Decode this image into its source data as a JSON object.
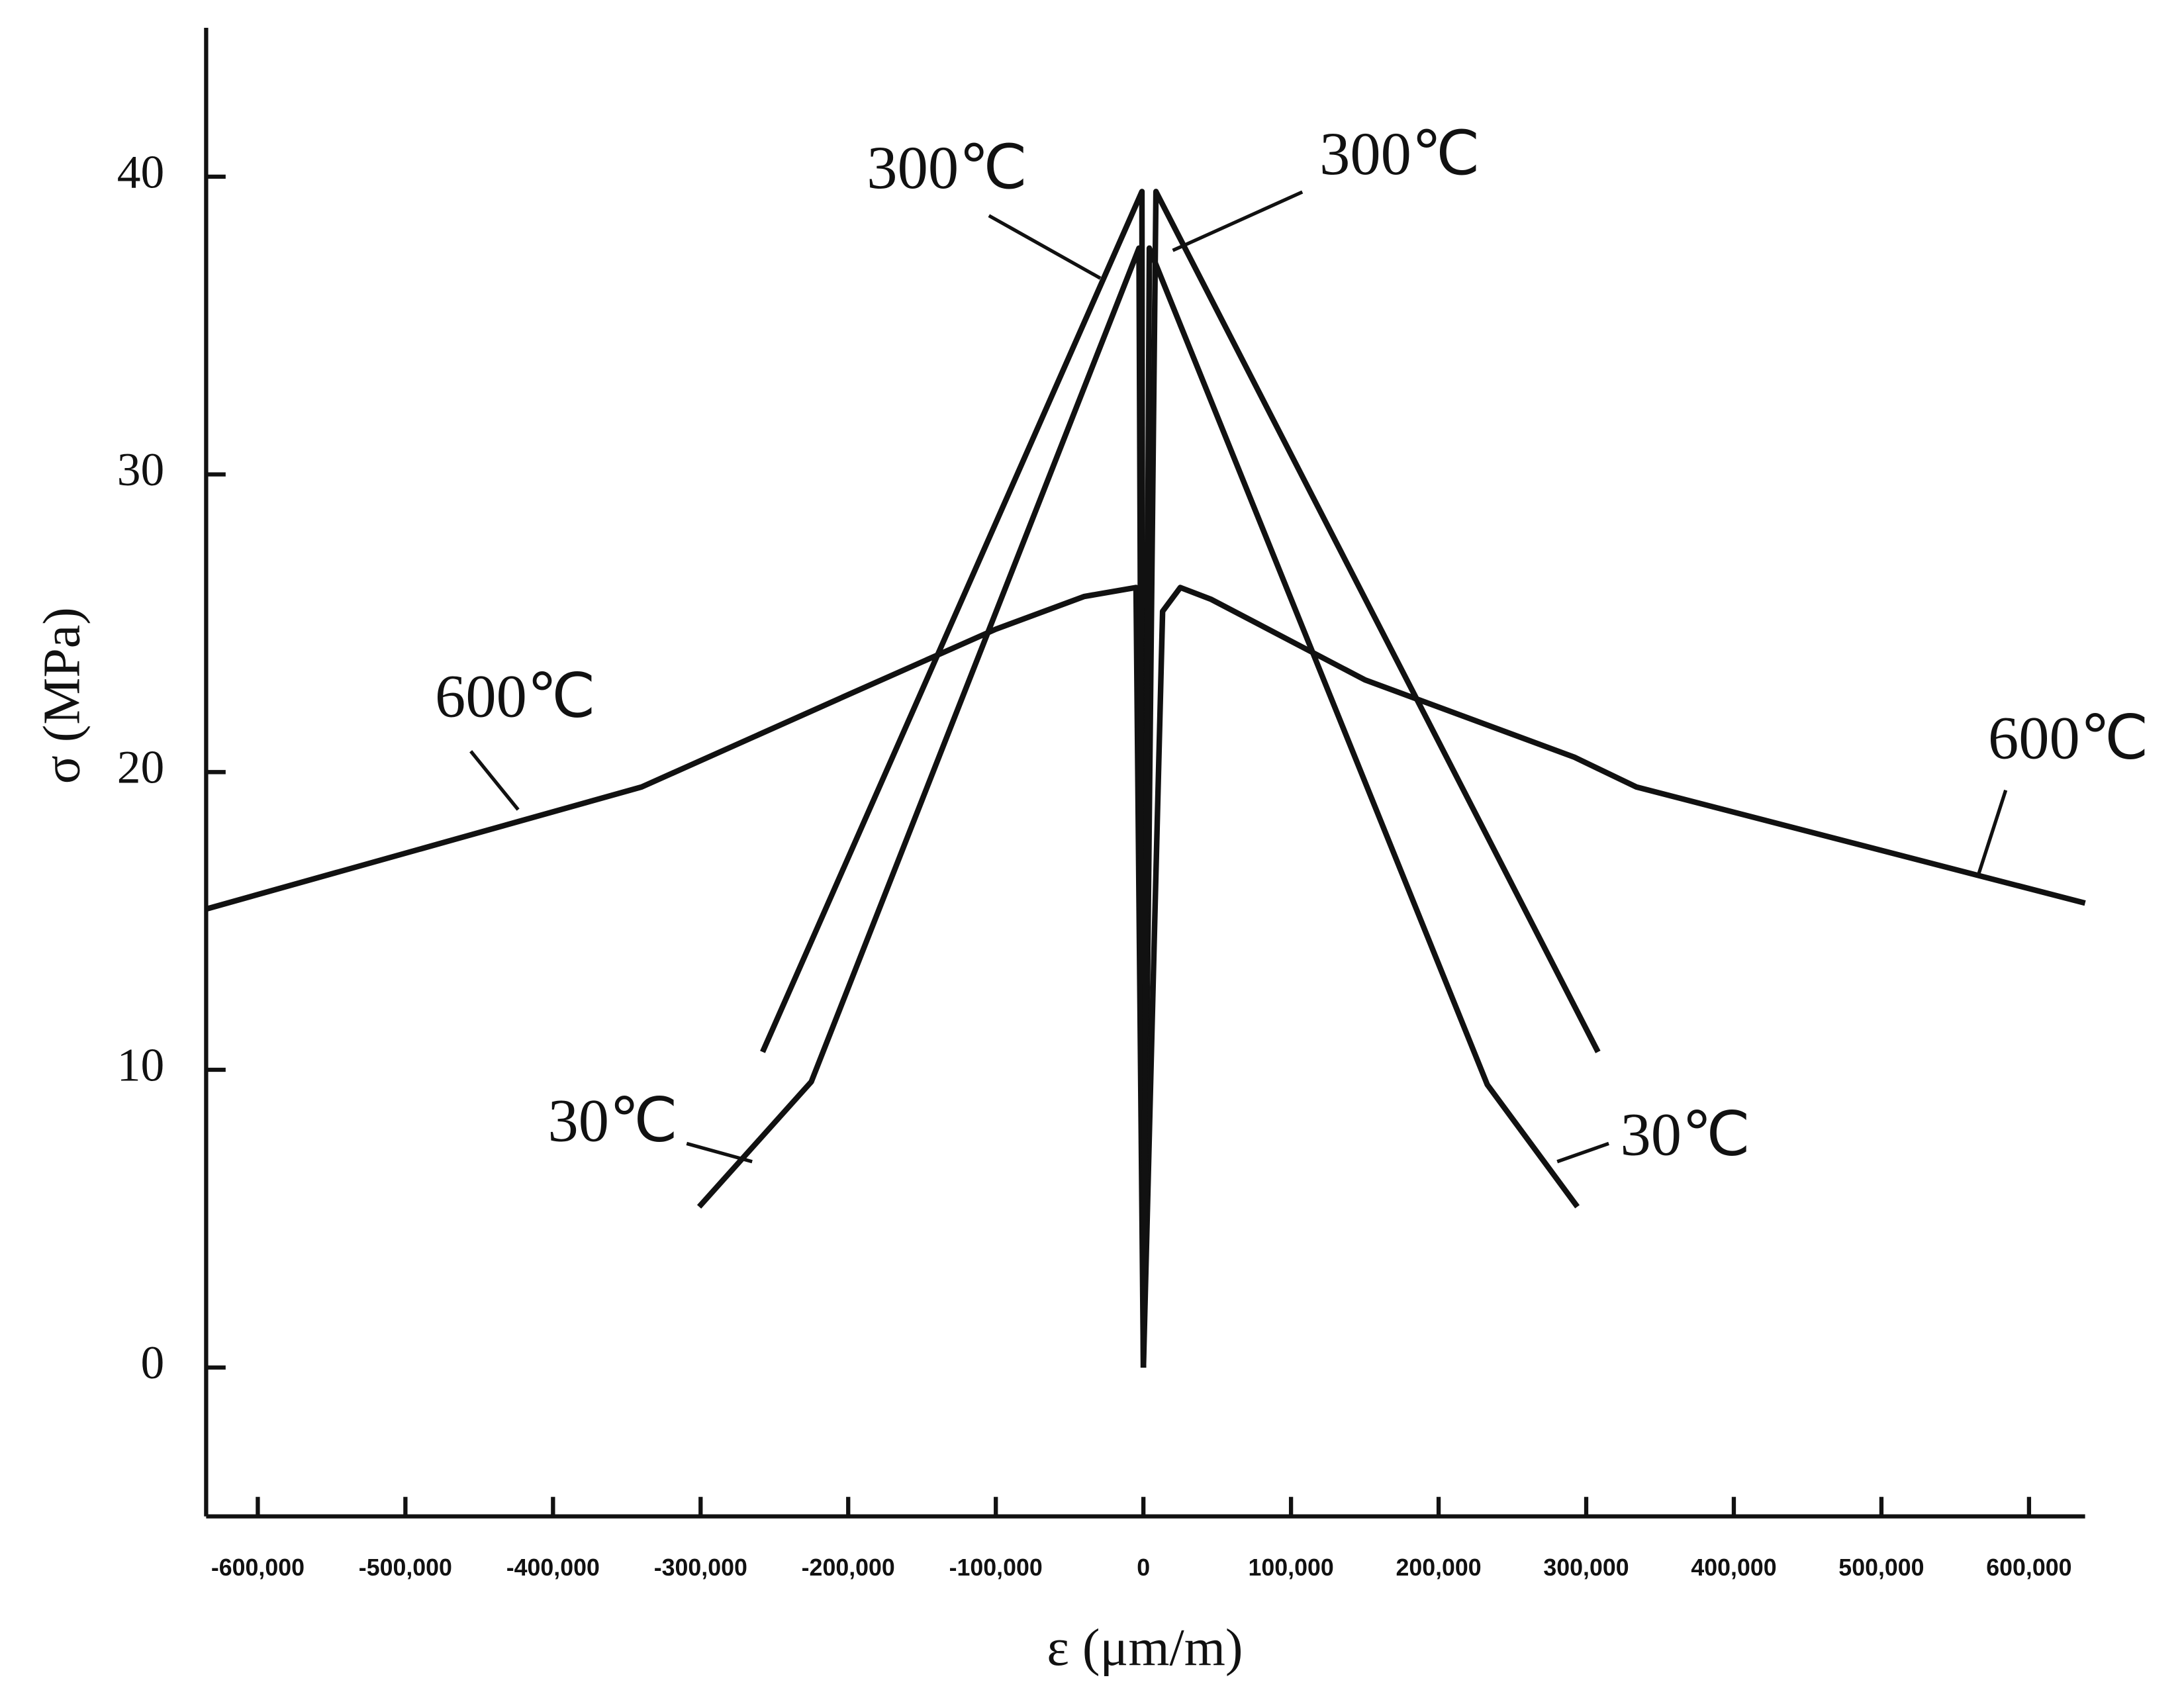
{
  "chart_data": {
    "type": "line",
    "x_label": "ε (μm/m)",
    "y_label": "σ (MPa)",
    "xlim": [
      -635000,
      638000
    ],
    "ylim": [
      -5,
      45
    ],
    "xticks": [
      {
        "value": -600000,
        "label": "-600,000"
      },
      {
        "value": -500000,
        "label": "-500,000"
      },
      {
        "value": -400000,
        "label": "-400,000"
      },
      {
        "value": -300000,
        "label": "-300,000"
      },
      {
        "value": -200000,
        "label": "-200,000"
      },
      {
        "value": -100000,
        "label": "-100,000"
      },
      0,
      {
        "value": 100000,
        "label": "100,000"
      },
      {
        "value": 200000,
        "label": "200,000"
      },
      {
        "value": 300000,
        "label": "300,000"
      },
      {
        "value": 400000,
        "label": "400,000"
      },
      {
        "value": 500000,
        "label": "500,000"
      },
      {
        "value": 600000,
        "label": "600,000"
      }
    ],
    "yticks": [
      0,
      10,
      20,
      30,
      40
    ],
    "series": [
      {
        "name": "600℃",
        "color": "#111111",
        "x": [
          -635000,
          -340000,
          -200000,
          -100000,
          -40000,
          -5000,
          0
        ],
        "values": [
          15.4,
          19.5,
          22.6,
          24.8,
          25.9,
          26.2,
          0
        ]
      },
      {
        "name": "600℃",
        "color": "#111111",
        "x": [
          0,
          13000,
          25000,
          46000,
          150000,
          292000,
          334000,
          638000
        ],
        "values": [
          0,
          25.4,
          26.2,
          25.8,
          23.1,
          20.5,
          19.5,
          15.6
        ]
      },
      {
        "name": "300℃",
        "color": "#111111",
        "x": [
          -258000,
          -130000,
          -1000,
          0
        ],
        "values": [
          10.6,
          25,
          39.5,
          0
        ]
      },
      {
        "name": "300℃",
        "color": "#111111",
        "x": [
          0,
          8500,
          308000
        ],
        "values": [
          0,
          39.5,
          10.6
        ]
      },
      {
        "name": "30℃",
        "color": "#111111",
        "x": [
          -301000,
          -225000,
          -3000,
          0
        ],
        "values": [
          5.4,
          9.6,
          37.6,
          0
        ]
      },
      {
        "name": "30℃",
        "color": "#111111",
        "x": [
          0,
          4000,
          233000,
          294000
        ],
        "values": [
          0,
          37.6,
          9.5,
          5.4
        ]
      }
    ]
  }
}
